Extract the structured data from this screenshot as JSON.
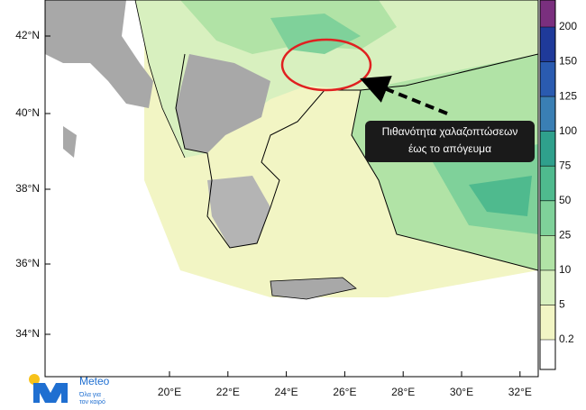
{
  "map": {
    "lat_labels": [
      "42°N",
      "40°N",
      "38°N",
      "36°N",
      "34°N"
    ],
    "lon_labels": [
      "20°E",
      "22°E",
      "24°E",
      "26°E",
      "28°E",
      "30°E",
      "32°E"
    ]
  },
  "colorbar": {
    "levels": [
      0.2,
      5,
      10,
      25,
      50,
      75,
      100,
      125,
      150,
      200
    ],
    "colors": [
      "#ffffff",
      "#f2f5c4",
      "#d8f0bf",
      "#b1e3a6",
      "#7fd19a",
      "#4fba8e",
      "#2fa08c",
      "#3a7fb4",
      "#2a5bb0",
      "#1f3a9a",
      "#7a2f7e"
    ]
  },
  "annotation": {
    "lines": [
      "Πιθανότητα χαλαζοπτώσεων",
      "έως το απόγευμα"
    ]
  },
  "logo": {
    "name": "Meteo",
    "tagline": [
      "Όλα για",
      "τον καιρό"
    ]
  }
}
